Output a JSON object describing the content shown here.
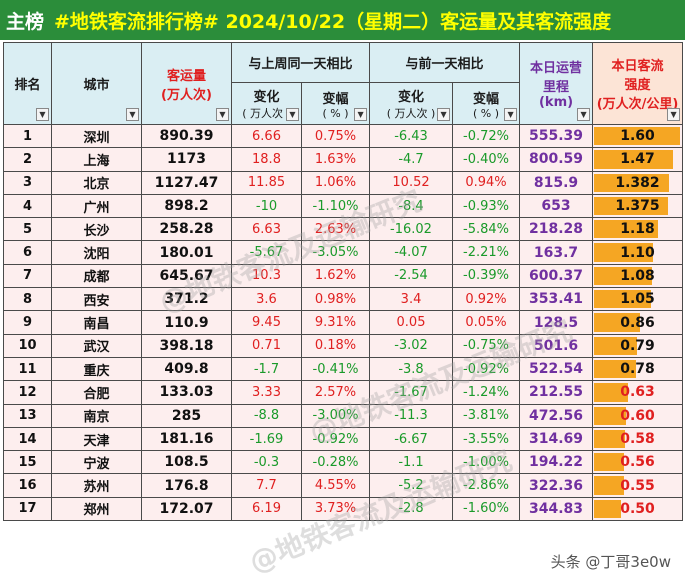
{
  "title": {
    "main": "主榜",
    "rest": "#地铁客流排行榜# 2024/10/22（星期二）客运量及其客流强度"
  },
  "headers": {
    "rank": "排名",
    "city": "城市",
    "passengers": "客运量",
    "passengers_unit": "(万人次)",
    "week_group": "与上周同一天相比",
    "day_group": "与前一天相比",
    "change": "变化",
    "change_unit": "( 万人次 )",
    "pct": "变幅",
    "pct_unit": "( % )",
    "km": "本日运营里程",
    "km_unit": "(km)",
    "strength": "本日客流强度",
    "strength_unit": "(万人次/公里)"
  },
  "rows": [
    {
      "rank": "1",
      "city": "深圳",
      "passengers": "890.39",
      "wk_change": "6.66",
      "wk_pct": "0.75%",
      "wk_sign": "pos",
      "dy_change": "-6.43",
      "dy_pct": "-0.72%",
      "dy_sign": "neg",
      "km": "555.39",
      "strength": "1.60",
      "strength_value": 1.6
    },
    {
      "rank": "2",
      "city": "上海",
      "passengers": "1173",
      "wk_change": "18.8",
      "wk_pct": "1.63%",
      "wk_sign": "pos",
      "dy_change": "-4.7",
      "dy_pct": "-0.40%",
      "dy_sign": "neg",
      "km": "800.59",
      "strength": "1.47",
      "strength_value": 1.47
    },
    {
      "rank": "3",
      "city": "北京",
      "passengers": "1127.47",
      "wk_change": "11.85",
      "wk_pct": "1.06%",
      "wk_sign": "pos",
      "dy_change": "10.52",
      "dy_pct": "0.94%",
      "dy_sign": "pos",
      "km": "815.9",
      "strength": "1.382",
      "strength_value": 1.382
    },
    {
      "rank": "4",
      "city": "广州",
      "passengers": "898.2",
      "wk_change": "-10",
      "wk_pct": "-1.10%",
      "wk_sign": "neg",
      "dy_change": "-8.4",
      "dy_pct": "-0.93%",
      "dy_sign": "neg",
      "km": "653",
      "strength": "1.375",
      "strength_value": 1.375
    },
    {
      "rank": "5",
      "city": "长沙",
      "passengers": "258.28",
      "wk_change": "6.63",
      "wk_pct": "2.63%",
      "wk_sign": "pos",
      "dy_change": "-16.02",
      "dy_pct": "-5.84%",
      "dy_sign": "neg",
      "km": "218.28",
      "strength": "1.18",
      "strength_value": 1.18
    },
    {
      "rank": "6",
      "city": "沈阳",
      "passengers": "180.01",
      "wk_change": "-5.67",
      "wk_pct": "-3.05%",
      "wk_sign": "neg",
      "dy_change": "-4.07",
      "dy_pct": "-2.21%",
      "dy_sign": "neg",
      "km": "163.7",
      "strength": "1.10",
      "strength_value": 1.1
    },
    {
      "rank": "7",
      "city": "成都",
      "passengers": "645.67",
      "wk_change": "10.3",
      "wk_pct": "1.62%",
      "wk_sign": "pos",
      "dy_change": "-2.54",
      "dy_pct": "-0.39%",
      "dy_sign": "neg",
      "km": "600.37",
      "strength": "1.08",
      "strength_value": 1.08
    },
    {
      "rank": "8",
      "city": "西安",
      "passengers": "371.2",
      "wk_change": "3.6",
      "wk_pct": "0.98%",
      "wk_sign": "pos",
      "dy_change": "3.4",
      "dy_pct": "0.92%",
      "dy_sign": "pos",
      "km": "353.41",
      "strength": "1.05",
      "strength_value": 1.05
    },
    {
      "rank": "9",
      "city": "南昌",
      "passengers": "110.9",
      "wk_change": "9.45",
      "wk_pct": "9.31%",
      "wk_sign": "pos",
      "dy_change": "0.05",
      "dy_pct": "0.05%",
      "dy_sign": "pos",
      "km": "128.5",
      "strength": "0.86",
      "strength_value": 0.86
    },
    {
      "rank": "10",
      "city": "武汉",
      "passengers": "398.18",
      "wk_change": "0.71",
      "wk_pct": "0.18%",
      "wk_sign": "pos",
      "dy_change": "-3.02",
      "dy_pct": "-0.75%",
      "dy_sign": "neg",
      "km": "501.6",
      "strength": "0.79",
      "strength_value": 0.79
    },
    {
      "rank": "11",
      "city": "重庆",
      "passengers": "409.8",
      "wk_change": "-1.7",
      "wk_pct": "-0.41%",
      "wk_sign": "neg",
      "dy_change": "-3.8",
      "dy_pct": "-0.92%",
      "dy_sign": "neg",
      "km": "522.54",
      "strength": "0.78",
      "strength_value": 0.78
    },
    {
      "rank": "12",
      "city": "合肥",
      "passengers": "133.03",
      "wk_change": "3.33",
      "wk_pct": "2.57%",
      "wk_sign": "pos",
      "dy_change": "-1.67",
      "dy_pct": "-1.24%",
      "dy_sign": "neg",
      "km": "212.55",
      "strength": "0.63",
      "strength_value": 0.63
    },
    {
      "rank": "13",
      "city": "南京",
      "passengers": "285",
      "wk_change": "-8.8",
      "wk_pct": "-3.00%",
      "wk_sign": "neg",
      "dy_change": "-11.3",
      "dy_pct": "-3.81%",
      "dy_sign": "neg",
      "km": "472.56",
      "strength": "0.60",
      "strength_value": 0.6
    },
    {
      "rank": "14",
      "city": "天津",
      "passengers": "181.16",
      "wk_change": "-1.69",
      "wk_pct": "-0.92%",
      "wk_sign": "neg",
      "dy_change": "-6.67",
      "dy_pct": "-3.55%",
      "dy_sign": "neg",
      "km": "314.69",
      "strength": "0.58",
      "strength_value": 0.58
    },
    {
      "rank": "15",
      "city": "宁波",
      "passengers": "108.5",
      "wk_change": "-0.3",
      "wk_pct": "-0.28%",
      "wk_sign": "neg",
      "dy_change": "-1.1",
      "dy_pct": "-1.00%",
      "dy_sign": "neg",
      "km": "194.22",
      "strength": "0.56",
      "strength_value": 0.56
    },
    {
      "rank": "16",
      "city": "苏州",
      "passengers": "176.8",
      "wk_change": "7.7",
      "wk_pct": "4.55%",
      "wk_sign": "pos",
      "dy_change": "-5.2",
      "dy_pct": "-2.86%",
      "dy_sign": "neg",
      "km": "322.36",
      "strength": "0.55",
      "strength_value": 0.55
    },
    {
      "rank": "17",
      "city": "郑州",
      "passengers": "172.07",
      "wk_change": "6.19",
      "wk_pct": "3.73%",
      "wk_sign": "pos",
      "dy_change": "-2.8",
      "dy_pct": "-1.60%",
      "dy_sign": "neg",
      "km": "344.83",
      "strength": "0.50",
      "strength_value": 0.5
    }
  ],
  "strength_max": 1.6,
  "watermark": "@地铁客流及运输研究",
  "footer": "头条 @丁哥3e0w"
}
